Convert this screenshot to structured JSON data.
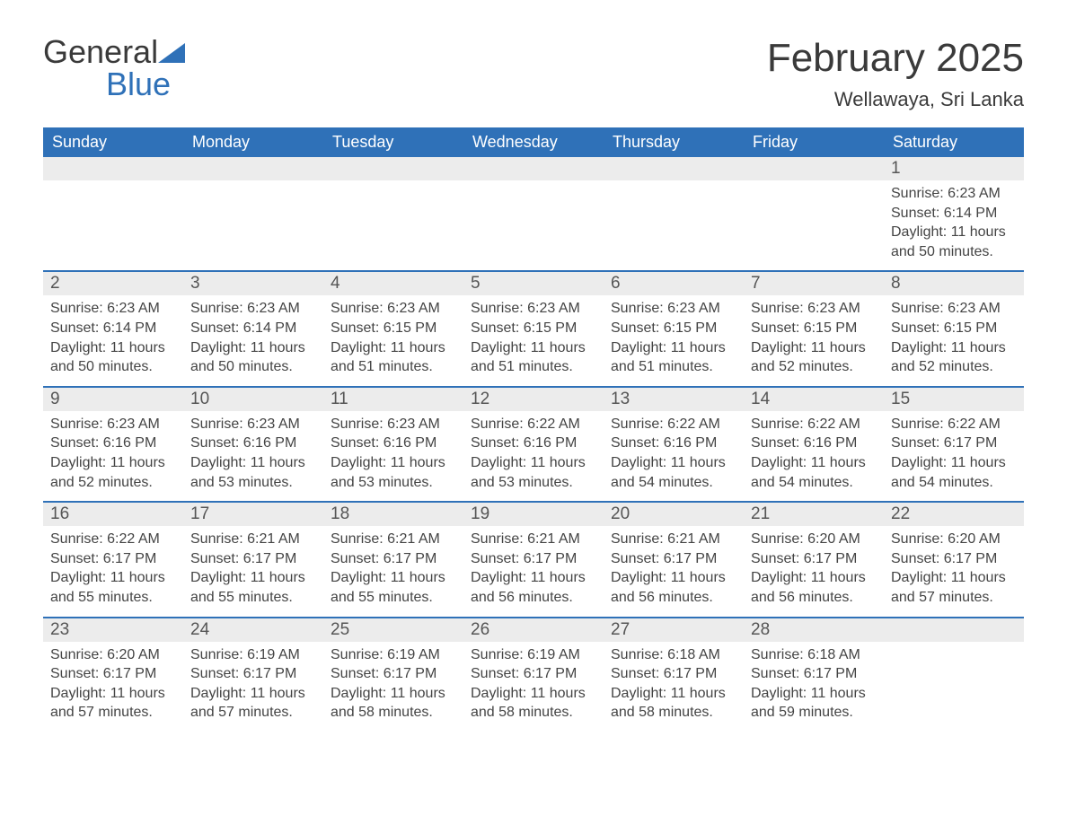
{
  "logo": {
    "text1": "General",
    "text2": "Blue"
  },
  "title": "February 2025",
  "location": "Wellawaya, Sri Lanka",
  "colors": {
    "brand_blue": "#2f71b8",
    "header_text": "#3a3a3a",
    "day_bg": "#ececec",
    "body_text": "#444444",
    "white": "#ffffff"
  },
  "weekdays": [
    "Sunday",
    "Monday",
    "Tuesday",
    "Wednesday",
    "Thursday",
    "Friday",
    "Saturday"
  ],
  "labels": {
    "sunrise": "Sunrise:",
    "sunset": "Sunset:",
    "daylight": "Daylight:"
  },
  "weeks": [
    [
      null,
      null,
      null,
      null,
      null,
      null,
      {
        "n": "1",
        "sr": "6:23 AM",
        "ss": "6:14 PM",
        "dl": "11 hours and 50 minutes."
      }
    ],
    [
      {
        "n": "2",
        "sr": "6:23 AM",
        "ss": "6:14 PM",
        "dl": "11 hours and 50 minutes."
      },
      {
        "n": "3",
        "sr": "6:23 AM",
        "ss": "6:14 PM",
        "dl": "11 hours and 50 minutes."
      },
      {
        "n": "4",
        "sr": "6:23 AM",
        "ss": "6:15 PM",
        "dl": "11 hours and 51 minutes."
      },
      {
        "n": "5",
        "sr": "6:23 AM",
        "ss": "6:15 PM",
        "dl": "11 hours and 51 minutes."
      },
      {
        "n": "6",
        "sr": "6:23 AM",
        "ss": "6:15 PM",
        "dl": "11 hours and 51 minutes."
      },
      {
        "n": "7",
        "sr": "6:23 AM",
        "ss": "6:15 PM",
        "dl": "11 hours and 52 minutes."
      },
      {
        "n": "8",
        "sr": "6:23 AM",
        "ss": "6:15 PM",
        "dl": "11 hours and 52 minutes."
      }
    ],
    [
      {
        "n": "9",
        "sr": "6:23 AM",
        "ss": "6:16 PM",
        "dl": "11 hours and 52 minutes."
      },
      {
        "n": "10",
        "sr": "6:23 AM",
        "ss": "6:16 PM",
        "dl": "11 hours and 53 minutes."
      },
      {
        "n": "11",
        "sr": "6:23 AM",
        "ss": "6:16 PM",
        "dl": "11 hours and 53 minutes."
      },
      {
        "n": "12",
        "sr": "6:22 AM",
        "ss": "6:16 PM",
        "dl": "11 hours and 53 minutes."
      },
      {
        "n": "13",
        "sr": "6:22 AM",
        "ss": "6:16 PM",
        "dl": "11 hours and 54 minutes."
      },
      {
        "n": "14",
        "sr": "6:22 AM",
        "ss": "6:16 PM",
        "dl": "11 hours and 54 minutes."
      },
      {
        "n": "15",
        "sr": "6:22 AM",
        "ss": "6:17 PM",
        "dl": "11 hours and 54 minutes."
      }
    ],
    [
      {
        "n": "16",
        "sr": "6:22 AM",
        "ss": "6:17 PM",
        "dl": "11 hours and 55 minutes."
      },
      {
        "n": "17",
        "sr": "6:21 AM",
        "ss": "6:17 PM",
        "dl": "11 hours and 55 minutes."
      },
      {
        "n": "18",
        "sr": "6:21 AM",
        "ss": "6:17 PM",
        "dl": "11 hours and 55 minutes."
      },
      {
        "n": "19",
        "sr": "6:21 AM",
        "ss": "6:17 PM",
        "dl": "11 hours and 56 minutes."
      },
      {
        "n": "20",
        "sr": "6:21 AM",
        "ss": "6:17 PM",
        "dl": "11 hours and 56 minutes."
      },
      {
        "n": "21",
        "sr": "6:20 AM",
        "ss": "6:17 PM",
        "dl": "11 hours and 56 minutes."
      },
      {
        "n": "22",
        "sr": "6:20 AM",
        "ss": "6:17 PM",
        "dl": "11 hours and 57 minutes."
      }
    ],
    [
      {
        "n": "23",
        "sr": "6:20 AM",
        "ss": "6:17 PM",
        "dl": "11 hours and 57 minutes."
      },
      {
        "n": "24",
        "sr": "6:19 AM",
        "ss": "6:17 PM",
        "dl": "11 hours and 57 minutes."
      },
      {
        "n": "25",
        "sr": "6:19 AM",
        "ss": "6:17 PM",
        "dl": "11 hours and 58 minutes."
      },
      {
        "n": "26",
        "sr": "6:19 AM",
        "ss": "6:17 PM",
        "dl": "11 hours and 58 minutes."
      },
      {
        "n": "27",
        "sr": "6:18 AM",
        "ss": "6:17 PM",
        "dl": "11 hours and 58 minutes."
      },
      {
        "n": "28",
        "sr": "6:18 AM",
        "ss": "6:17 PM",
        "dl": "11 hours and 59 minutes."
      },
      null
    ]
  ]
}
